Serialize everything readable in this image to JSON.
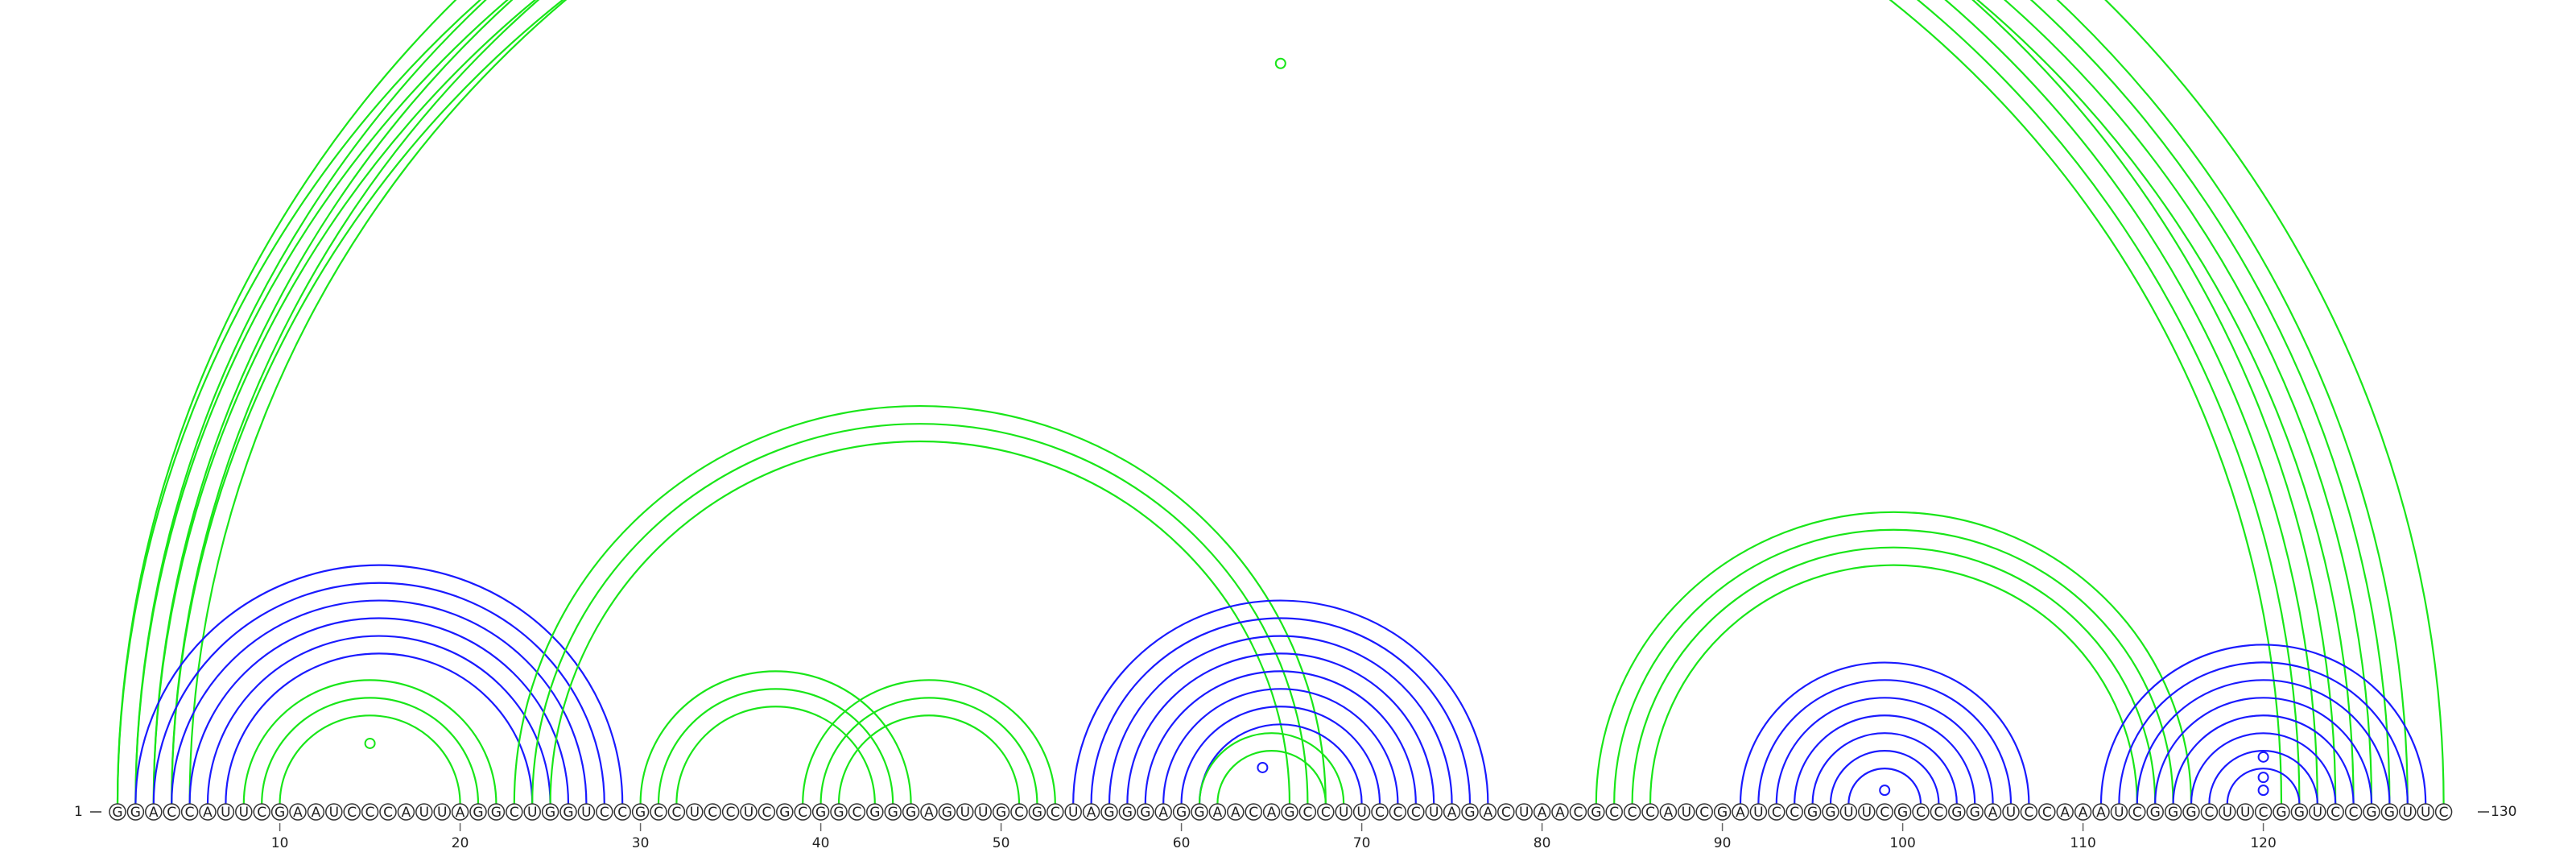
{
  "sequence": "GGACCAUUCGAAUCCCAUUAGGCUGGUCCGCCUCCUCGCGGCGGGAGUUGCGCUAGGGAGGAACAGCCUUCCCUAGACUAACGCCCAUCGAUCCGGUUCGCCGGAUCCAAAUCGGGCUUCGGUCCGGUUC",
  "start_label": "1",
  "end_label": "130",
  "tick_positions": [
    10,
    20,
    30,
    40,
    50,
    60,
    70,
    80,
    90,
    100,
    110,
    120
  ],
  "colors": {
    "blue": "#1a1aff",
    "green": "#19e619"
  },
  "arcs": [
    {
      "i": 1,
      "j": 130,
      "color": "green"
    },
    {
      "i": 2,
      "j": 128,
      "color": "green"
    },
    {
      "i": 3,
      "j": 127,
      "color": "green"
    },
    {
      "i": 4,
      "j": 126,
      "color": "green"
    },
    {
      "i": 5,
      "j": 125,
      "color": "green"
    },
    {
      "i": 1,
      "j": 124,
      "color": "green"
    },
    {
      "i": 2,
      "j": 123,
      "color": "green"
    },
    {
      "i": 3,
      "j": 122,
      "color": "green"
    },
    {
      "i": 4,
      "j": 121,
      "color": "green"
    },
    {
      "i": 2,
      "j": 29,
      "color": "blue"
    },
    {
      "i": 3,
      "j": 28,
      "color": "blue"
    },
    {
      "i": 4,
      "j": 27,
      "color": "blue"
    },
    {
      "i": 5,
      "j": 26,
      "color": "blue"
    },
    {
      "i": 6,
      "j": 25,
      "color": "blue"
    },
    {
      "i": 7,
      "j": 24,
      "color": "blue"
    },
    {
      "i": 8,
      "j": 22,
      "color": "green"
    },
    {
      "i": 9,
      "j": 21,
      "color": "green"
    },
    {
      "i": 10,
      "j": 20,
      "color": "green"
    },
    {
      "i": 23,
      "j": 68,
      "color": "green"
    },
    {
      "i": 24,
      "j": 67,
      "color": "green"
    },
    {
      "i": 25,
      "j": 66,
      "color": "green"
    },
    {
      "i": 30,
      "j": 45,
      "color": "green"
    },
    {
      "i": 31,
      "j": 44,
      "color": "green"
    },
    {
      "i": 32,
      "j": 43,
      "color": "green"
    },
    {
      "i": 39,
      "j": 53,
      "color": "green"
    },
    {
      "i": 40,
      "j": 52,
      "color": "green"
    },
    {
      "i": 41,
      "j": 51,
      "color": "green"
    },
    {
      "i": 54,
      "j": 77,
      "color": "blue"
    },
    {
      "i": 55,
      "j": 76,
      "color": "blue"
    },
    {
      "i": 56,
      "j": 75,
      "color": "blue"
    },
    {
      "i": 57,
      "j": 74,
      "color": "blue"
    },
    {
      "i": 58,
      "j": 73,
      "color": "blue"
    },
    {
      "i": 59,
      "j": 72,
      "color": "blue"
    },
    {
      "i": 60,
      "j": 71,
      "color": "blue"
    },
    {
      "i": 61,
      "j": 70,
      "color": "blue"
    },
    {
      "i": 61,
      "j": 69,
      "color": "green"
    },
    {
      "i": 62,
      "j": 68,
      "color": "green"
    },
    {
      "i": 83,
      "j": 116,
      "color": "green"
    },
    {
      "i": 84,
      "j": 115,
      "color": "green"
    },
    {
      "i": 85,
      "j": 114,
      "color": "green"
    },
    {
      "i": 86,
      "j": 113,
      "color": "green"
    },
    {
      "i": 91,
      "j": 107,
      "color": "blue"
    },
    {
      "i": 92,
      "j": 106,
      "color": "blue"
    },
    {
      "i": 93,
      "j": 105,
      "color": "blue"
    },
    {
      "i": 94,
      "j": 104,
      "color": "blue"
    },
    {
      "i": 95,
      "j": 103,
      "color": "blue"
    },
    {
      "i": 96,
      "j": 102,
      "color": "blue"
    },
    {
      "i": 97,
      "j": 101,
      "color": "blue"
    },
    {
      "i": 111,
      "j": 129,
      "color": "blue"
    },
    {
      "i": 112,
      "j": 128,
      "color": "blue"
    },
    {
      "i": 113,
      "j": 127,
      "color": "blue"
    },
    {
      "i": 114,
      "j": 126,
      "color": "blue"
    },
    {
      "i": 115,
      "j": 125,
      "color": "blue"
    },
    {
      "i": 116,
      "j": 124,
      "color": "blue"
    },
    {
      "i": 117,
      "j": 123,
      "color": "blue"
    },
    {
      "i": 118,
      "j": 122,
      "color": "blue"
    }
  ],
  "markers": [
    {
      "pos": 65.5,
      "level": 0.98,
      "color": "green"
    },
    {
      "pos": 15,
      "level": 0.08,
      "color": "green"
    },
    {
      "pos": 64.5,
      "level": 0.048,
      "color": "blue"
    },
    {
      "pos": 99,
      "level": 0.018,
      "color": "blue"
    },
    {
      "pos": 120,
      "level": 0.062,
      "color": "blue"
    },
    {
      "pos": 120,
      "level": 0.035,
      "color": "blue"
    },
    {
      "pos": 120,
      "level": 0.018,
      "color": "blue"
    }
  ]
}
